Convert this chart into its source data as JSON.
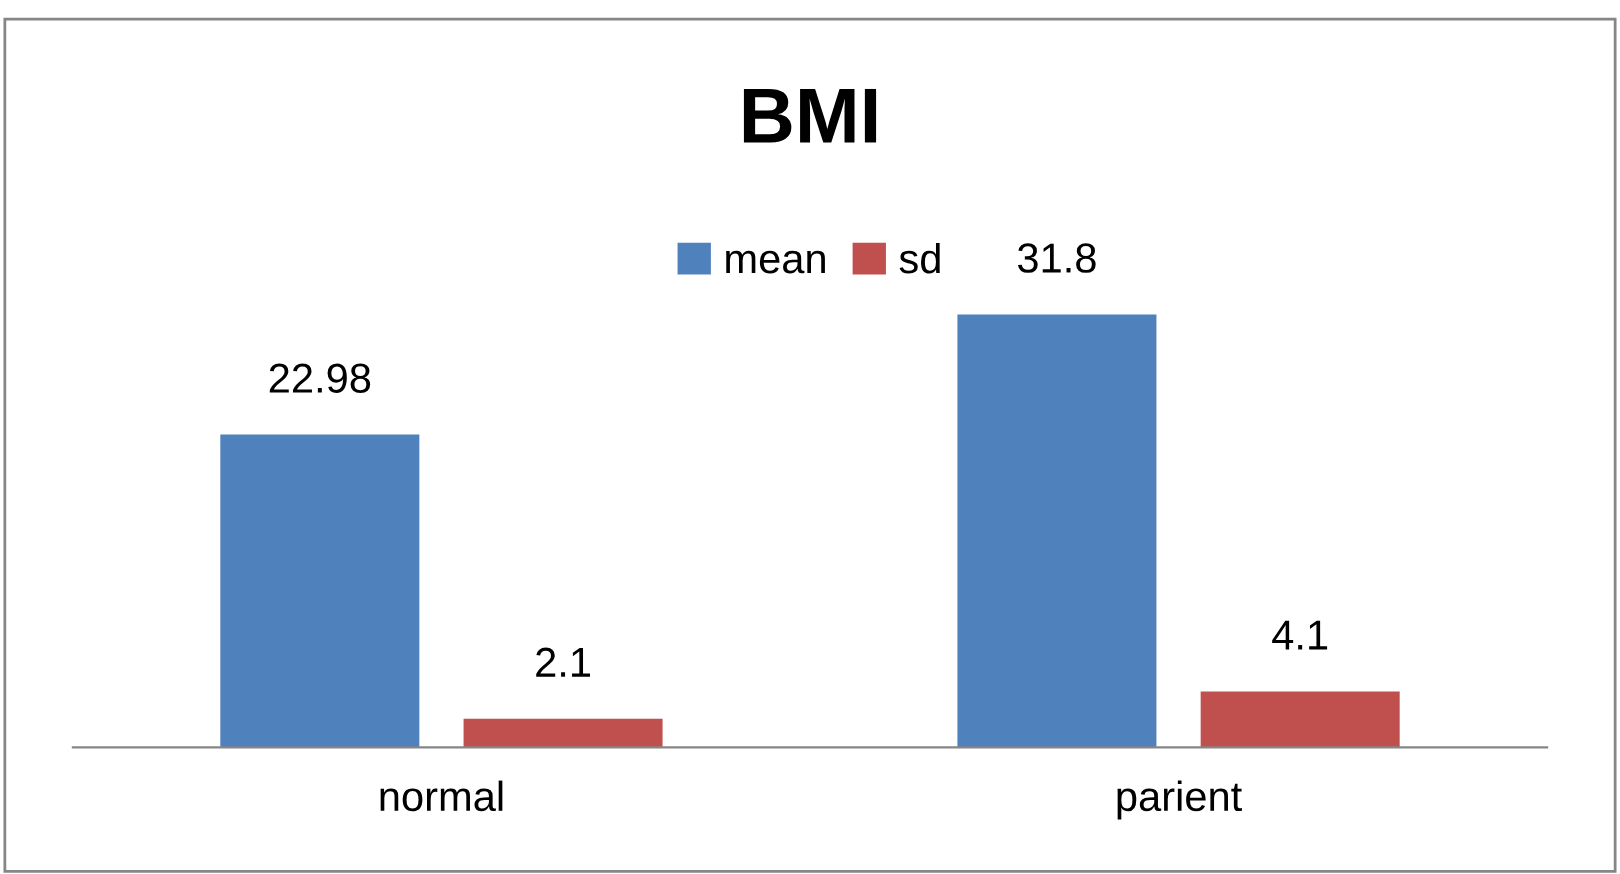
{
  "chart_data": {
    "type": "bar",
    "title": "BMI",
    "categories": [
      "normal",
      "parient"
    ],
    "series": [
      {
        "name": "mean",
        "color": "#4f81bd",
        "values": [
          22.98,
          31.8
        ]
      },
      {
        "name": "sd",
        "color": "#c0504d",
        "values": [
          2.1,
          4.1
        ]
      }
    ],
    "data_labels": true,
    "legend": "top",
    "grid": false
  }
}
